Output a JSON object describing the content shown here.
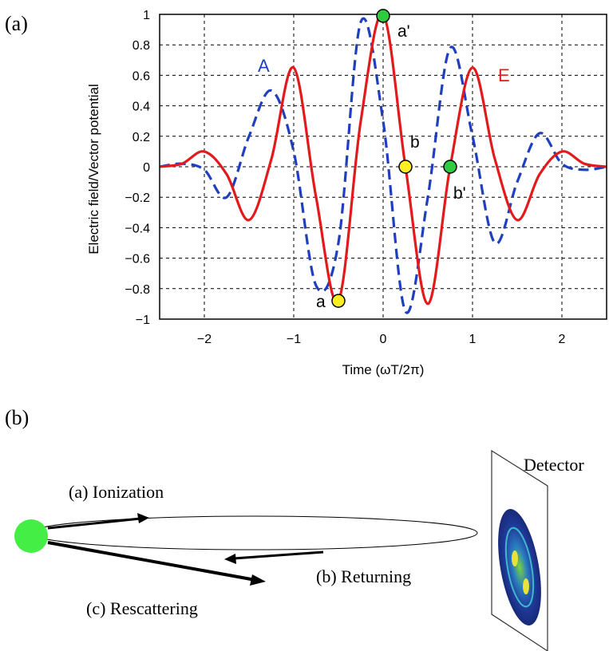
{
  "panel_a": {
    "label": "(a)",
    "chart_data": {
      "type": "line",
      "xlabel": "Time (ωT/2π)",
      "ylabel": "Electric field/Vector potential",
      "xlim": [
        -2.5,
        2.5
      ],
      "ylim": [
        -1,
        1
      ],
      "xticks": [
        -2,
        -1,
        0,
        1,
        2
      ],
      "xtick_labels": [
        "−2",
        "−1",
        "0",
        "1",
        "2"
      ],
      "yticks": [
        1,
        0.8,
        0.6,
        0.4,
        0.2,
        0,
        -0.2,
        -0.4,
        -0.6,
        -0.8,
        -1
      ],
      "ytick_labels": [
        "1",
        "0.8",
        "0.6",
        "0.4",
        "0.2",
        "0",
        "−0.2",
        "−0.4",
        "−0.6",
        "−0.8",
        "−1"
      ],
      "grid": true,
      "series": [
        {
          "name": "E",
          "color": "#e31a1c",
          "style": "solid",
          "x": [
            -2.5,
            -2.25,
            -2.0,
            -1.75,
            -1.5,
            -1.25,
            -1.0,
            -0.75,
            -0.5,
            -0.25,
            0.0,
            0.25,
            0.5,
            0.75,
            1.0,
            1.25,
            1.5,
            1.75,
            2.0,
            2.25,
            2.5
          ],
          "values": [
            0.0,
            0.02,
            0.1,
            -0.05,
            -0.35,
            0.05,
            0.65,
            -0.2,
            -0.88,
            0.3,
            1.0,
            0.0,
            -0.9,
            0.0,
            0.65,
            0.05,
            -0.35,
            -0.05,
            0.1,
            0.02,
            0.0
          ]
        },
        {
          "name": "A",
          "color": "#1f3fbf",
          "style": "dashed",
          "x": [
            -2.5,
            -2.25,
            -2.0,
            -1.75,
            -1.5,
            -1.25,
            -1.0,
            -0.75,
            -0.5,
            -0.25,
            0.0,
            0.25,
            0.5,
            0.75,
            1.0,
            1.25,
            1.5,
            1.75,
            2.0,
            2.25,
            2.5
          ],
          "values": [
            0.0,
            0.02,
            -0.02,
            -0.2,
            0.2,
            0.5,
            0.1,
            -0.78,
            -0.5,
            0.95,
            0.3,
            -0.95,
            -0.2,
            0.78,
            0.2,
            -0.5,
            -0.1,
            0.22,
            0.02,
            -0.02,
            0.0
          ]
        }
      ],
      "points": [
        {
          "label": "a",
          "x": -0.5,
          "y": -0.88,
          "color": "#ffee22"
        },
        {
          "label": "a'",
          "x": 0.0,
          "y": 0.99,
          "color": "#2ecc40"
        },
        {
          "label": "b",
          "x": 0.25,
          "y": 0.0,
          "color": "#ffee22"
        },
        {
          "label": "b'",
          "x": 0.75,
          "y": 0.0,
          "color": "#2ecc40"
        }
      ],
      "series_labels": {
        "A": "A",
        "E": "E"
      }
    }
  },
  "panel_b": {
    "label": "(b)",
    "detector_label": "Detector",
    "ionization_label": "(a) Ionization",
    "returning_label": "(b) Returning",
    "rescattering_label": "(c) Rescattering",
    "atom_color": "#44ee44"
  }
}
